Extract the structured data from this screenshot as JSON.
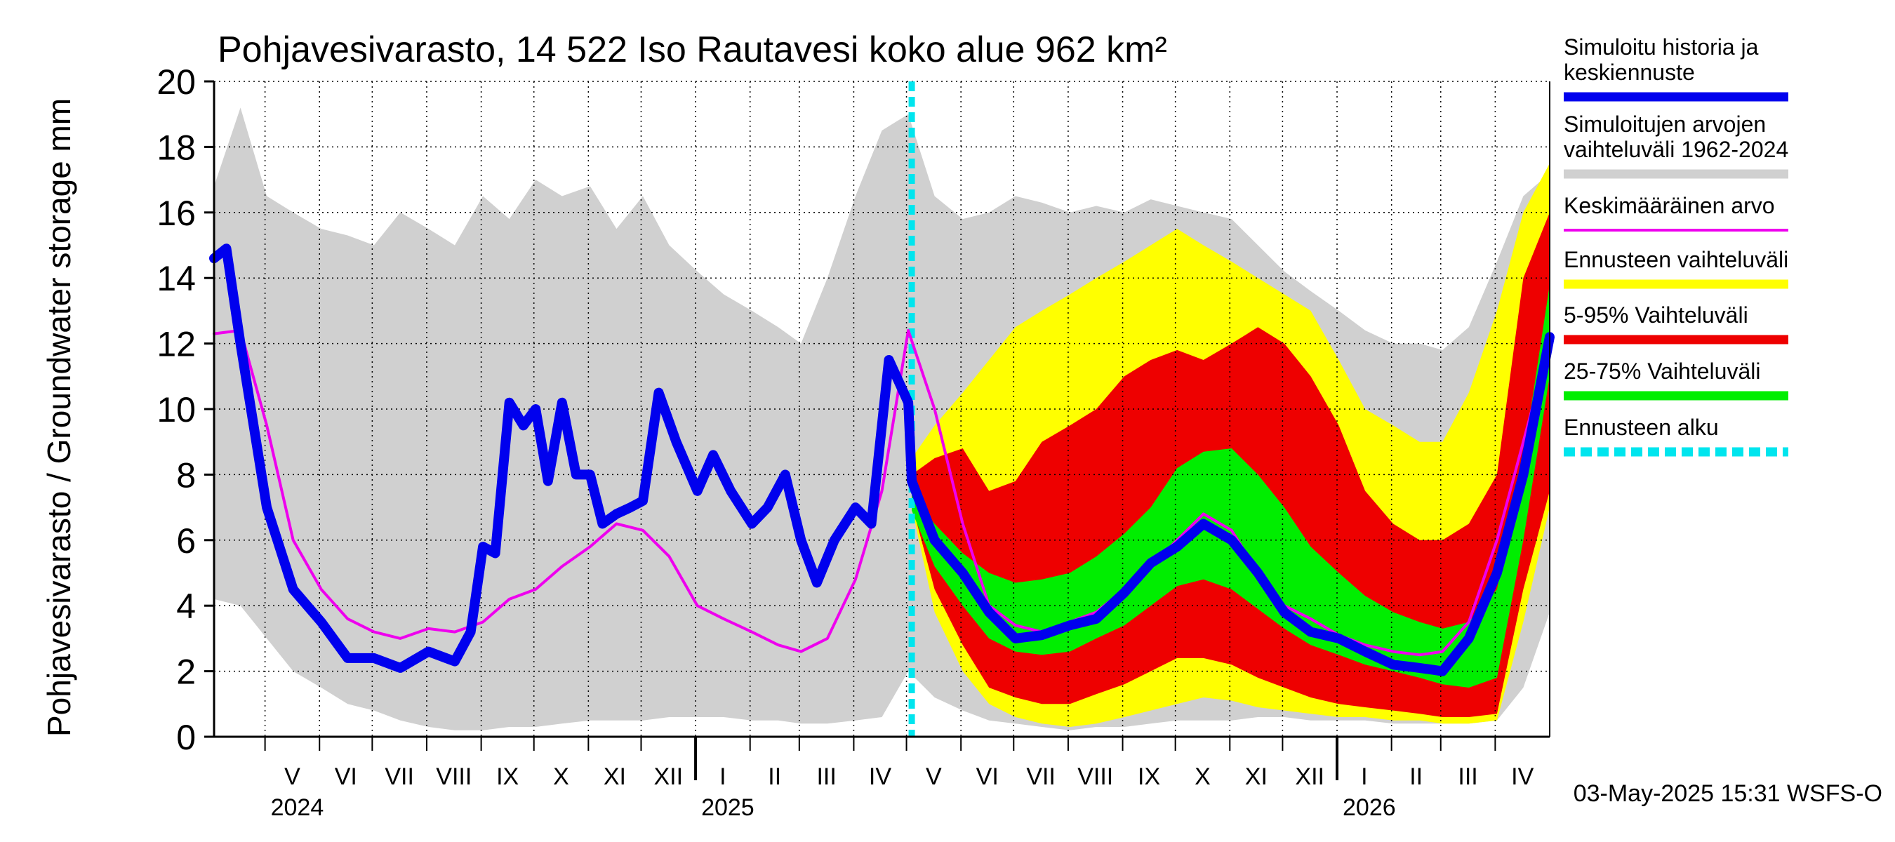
{
  "chart_data": {
    "type": "area",
    "title": "Pohjavesivarasto, 14 522 Iso Rautavesi koko alue 962 km²",
    "ylabel": "Pohjavesivarasto / Groundwater storage   mm",
    "ylim": [
      0,
      20
    ],
    "yticks": [
      "0",
      "2",
      "4",
      "6",
      "8",
      "10",
      "12",
      "14",
      "16",
      "18",
      "20"
    ],
    "xlim": [
      "2024-04-01",
      "2026-05-01"
    ],
    "forecast_start": "2025-05-03",
    "grid": true,
    "legend_position": "right",
    "month_labels": [
      {
        "label": "V",
        "start": "2024-04-30"
      },
      {
        "label": "VI",
        "start": "2024-05-31"
      },
      {
        "label": "VII",
        "start": "2024-06-30"
      },
      {
        "label": "VIII",
        "start": "2024-07-31"
      },
      {
        "label": "IX",
        "start": "2024-08-31"
      },
      {
        "label": "X",
        "start": "2024-09-30"
      },
      {
        "label": "XI",
        "start": "2024-10-31"
      },
      {
        "label": "XII",
        "start": "2024-11-30"
      },
      {
        "label": "I",
        "start": "2024-12-31"
      },
      {
        "label": "II",
        "start": "2025-01-31"
      },
      {
        "label": "III",
        "start": "2025-02-28"
      },
      {
        "label": "IV",
        "start": "2025-03-31"
      },
      {
        "label": "V",
        "start": "2025-04-30"
      },
      {
        "label": "VI",
        "start": "2025-05-31"
      },
      {
        "label": "VII",
        "start": "2025-06-30"
      },
      {
        "label": "VIII",
        "start": "2025-07-31"
      },
      {
        "label": "IX",
        "start": "2025-08-31"
      },
      {
        "label": "X",
        "start": "2025-09-30"
      },
      {
        "label": "XI",
        "start": "2025-10-31"
      },
      {
        "label": "XII",
        "start": "2025-11-30"
      },
      {
        "label": "I",
        "start": "2025-12-31"
      },
      {
        "label": "II",
        "start": "2026-01-31"
      },
      {
        "label": "III",
        "start": "2026-02-28"
      },
      {
        "label": "IV",
        "start": "2026-03-31"
      }
    ],
    "year_labels": [
      {
        "label": "2024",
        "start": "2024-04-30"
      },
      {
        "label": "2025",
        "start": "2024-12-31"
      },
      {
        "label": "2026",
        "start": "2025-12-31"
      }
    ],
    "legend": [
      {
        "label": "Simuloitu historia ja keskiennuste",
        "color": "#0000ee",
        "style": "thick"
      },
      {
        "label": "Simuloitujen arvojen vaihteluväli 1962-2024",
        "color": "#d0d0d0",
        "style": "thick"
      },
      {
        "label": "Keskimääräinen arvo",
        "color": "#ee00ee",
        "style": "thin"
      },
      {
        "label": "Ennusteen vaihteluväli",
        "color": "#ffff00",
        "style": "thick"
      },
      {
        "label": "5-95% Vaihteluväli",
        "color": "#ee0000",
        "style": "thick"
      },
      {
        "label": "25-75% Vaihteluväli",
        "color": "#00ee00",
        "style": "thick"
      },
      {
        "label": "Ennusteen alku",
        "color": "#00e5ee",
        "style": "dashed"
      }
    ],
    "series": [
      {
        "name": "Simuloitujen arvojen vaihteluväli 1962-2024",
        "kind": "band",
        "color": "#d0d0d0",
        "x": [
          "2024-04-01",
          "2024-04-16",
          "2024-05-01",
          "2024-05-16",
          "2024-06-01",
          "2024-06-16",
          "2024-07-01",
          "2024-07-16",
          "2024-08-01",
          "2024-08-16",
          "2024-09-01",
          "2024-09-16",
          "2024-10-01",
          "2024-10-16",
          "2024-11-01",
          "2024-11-16",
          "2024-12-01",
          "2024-12-16",
          "2025-01-01",
          "2025-01-16",
          "2025-02-01",
          "2025-02-16",
          "2025-03-01",
          "2025-03-16",
          "2025-04-01",
          "2025-04-16",
          "2025-05-01",
          "2025-05-16",
          "2025-06-01",
          "2025-06-16",
          "2025-07-01",
          "2025-07-16",
          "2025-08-01",
          "2025-08-16",
          "2025-09-01",
          "2025-09-16",
          "2025-10-01",
          "2025-10-16",
          "2025-11-01",
          "2025-11-16",
          "2025-12-01",
          "2025-12-16",
          "2026-01-01",
          "2026-01-16",
          "2026-02-01",
          "2026-02-16",
          "2026-03-01",
          "2026-03-16",
          "2026-04-01",
          "2026-04-16",
          "2026-05-01"
        ],
        "low": [
          4.2,
          4.0,
          3.0,
          2.0,
          1.5,
          1.0,
          0.8,
          0.5,
          0.3,
          0.2,
          0.2,
          0.3,
          0.3,
          0.4,
          0.5,
          0.5,
          0.5,
          0.6,
          0.6,
          0.6,
          0.5,
          0.5,
          0.4,
          0.4,
          0.5,
          0.6,
          2.0,
          1.2,
          0.8,
          0.5,
          0.4,
          0.3,
          0.2,
          0.3,
          0.3,
          0.4,
          0.5,
          0.5,
          0.5,
          0.6,
          0.6,
          0.5,
          0.5,
          0.5,
          0.4,
          0.4,
          0.4,
          0.4,
          0.5,
          1.5,
          3.8
        ],
        "high": [
          16.8,
          19.2,
          16.5,
          16.0,
          15.5,
          15.3,
          15.0,
          16.0,
          15.5,
          15.0,
          16.5,
          15.8,
          17.0,
          16.5,
          16.8,
          15.5,
          16.5,
          15.0,
          14.2,
          13.5,
          13.0,
          12.5,
          12.0,
          14.0,
          16.5,
          18.5,
          19.0,
          16.5,
          15.8,
          16.0,
          16.5,
          16.3,
          16.0,
          16.2,
          16.0,
          16.4,
          16.2,
          16.0,
          15.8,
          15.0,
          14.2,
          13.6,
          13.0,
          12.4,
          12.0,
          12.0,
          11.8,
          12.5,
          14.5,
          16.5,
          17.2
        ]
      },
      {
        "name": "Ennusteen vaihteluväli",
        "kind": "band",
        "color": "#ffff00",
        "x": [
          "2025-05-03",
          "2025-05-16",
          "2025-06-01",
          "2025-06-16",
          "2025-07-01",
          "2025-07-16",
          "2025-08-01",
          "2025-08-16",
          "2025-09-01",
          "2025-09-16",
          "2025-10-01",
          "2025-10-16",
          "2025-11-01",
          "2025-11-16",
          "2025-12-01",
          "2025-12-16",
          "2026-01-01",
          "2026-01-16",
          "2026-02-01",
          "2026-02-16",
          "2026-03-01",
          "2026-03-16",
          "2026-04-01",
          "2026-04-16",
          "2026-05-01"
        ],
        "low": [
          7.0,
          3.8,
          2.0,
          1.0,
          0.6,
          0.4,
          0.3,
          0.4,
          0.6,
          0.8,
          1.0,
          1.2,
          1.1,
          0.9,
          0.8,
          0.7,
          0.6,
          0.6,
          0.5,
          0.5,
          0.4,
          0.4,
          0.5,
          3.5,
          7.0
        ],
        "high": [
          8.5,
          9.5,
          10.5,
          11.5,
          12.5,
          13.0,
          13.5,
          14.0,
          14.5,
          15.0,
          15.5,
          15.0,
          14.5,
          14.0,
          13.5,
          13.0,
          11.5,
          10.0,
          9.5,
          9.0,
          9.0,
          10.5,
          13.0,
          16.0,
          17.5
        ]
      },
      {
        "name": "5-95% Vaihteluväli",
        "kind": "band",
        "color": "#ee0000",
        "x": [
          "2025-05-03",
          "2025-05-16",
          "2025-06-01",
          "2025-06-16",
          "2025-07-01",
          "2025-07-16",
          "2025-08-01",
          "2025-08-16",
          "2025-09-01",
          "2025-09-16",
          "2025-10-01",
          "2025-10-16",
          "2025-11-01",
          "2025-11-16",
          "2025-12-01",
          "2025-12-16",
          "2026-01-01",
          "2026-01-16",
          "2026-02-01",
          "2026-02-16",
          "2026-03-01",
          "2026-03-16",
          "2026-04-01",
          "2026-04-16",
          "2026-05-01"
        ],
        "low": [
          7.1,
          4.5,
          2.8,
          1.5,
          1.2,
          1.0,
          1.0,
          1.3,
          1.6,
          2.0,
          2.4,
          2.4,
          2.2,
          1.8,
          1.5,
          1.2,
          1.0,
          0.9,
          0.8,
          0.7,
          0.6,
          0.6,
          0.7,
          4.5,
          7.5
        ],
        "high": [
          8.0,
          8.5,
          8.8,
          7.5,
          7.8,
          9.0,
          9.5,
          10.0,
          11.0,
          11.5,
          11.8,
          11.5,
          12.0,
          12.5,
          12.0,
          11.0,
          9.5,
          7.5,
          6.5,
          6.0,
          6.0,
          6.5,
          8.0,
          14.0,
          16.0
        ]
      },
      {
        "name": "25-75% Vaihteluväli",
        "kind": "band",
        "color": "#00ee00",
        "x": [
          "2025-05-03",
          "2025-05-16",
          "2025-06-01",
          "2025-06-16",
          "2025-07-01",
          "2025-07-16",
          "2025-08-01",
          "2025-08-16",
          "2025-09-01",
          "2025-09-16",
          "2025-10-01",
          "2025-10-16",
          "2025-11-01",
          "2025-11-16",
          "2025-12-01",
          "2025-12-16",
          "2026-01-01",
          "2026-01-16",
          "2026-02-01",
          "2026-02-16",
          "2026-03-01",
          "2026-03-16",
          "2026-04-01",
          "2026-04-16",
          "2026-05-01"
        ],
        "low": [
          6.9,
          5.2,
          4.0,
          3.0,
          2.6,
          2.5,
          2.6,
          3.0,
          3.4,
          4.0,
          4.6,
          4.8,
          4.5,
          3.9,
          3.3,
          2.8,
          2.5,
          2.2,
          2.0,
          1.8,
          1.6,
          1.5,
          1.8,
          6.0,
          11.0
        ],
        "high": [
          7.4,
          6.5,
          5.6,
          5.0,
          4.7,
          4.8,
          5.0,
          5.5,
          6.2,
          7.0,
          8.2,
          8.7,
          8.8,
          8.0,
          7.0,
          5.8,
          5.0,
          4.3,
          3.8,
          3.5,
          3.3,
          3.5,
          4.5,
          8.5,
          13.8
        ]
      },
      {
        "name": "Keskimääräinen arvo",
        "kind": "line",
        "color": "#ee00ee",
        "width": 4,
        "x": [
          "2024-04-01",
          "2024-04-16",
          "2024-05-01",
          "2024-05-16",
          "2024-06-01",
          "2024-06-16",
          "2024-07-01",
          "2024-07-16",
          "2024-08-01",
          "2024-08-16",
          "2024-09-01",
          "2024-09-16",
          "2024-10-01",
          "2024-10-16",
          "2024-11-01",
          "2024-11-16",
          "2024-12-01",
          "2024-12-16",
          "2025-01-01",
          "2025-01-16",
          "2025-02-01",
          "2025-02-16",
          "2025-03-01",
          "2025-03-16",
          "2025-04-01",
          "2025-04-16",
          "2025-05-01",
          "2025-05-16",
          "2025-06-01",
          "2025-06-16",
          "2025-07-01",
          "2025-07-16",
          "2025-08-01",
          "2025-08-16",
          "2025-09-01",
          "2025-09-16",
          "2025-10-01",
          "2025-10-16",
          "2025-11-01",
          "2025-11-16",
          "2025-12-01",
          "2025-12-16",
          "2026-01-01",
          "2026-01-16",
          "2026-02-01",
          "2026-02-16",
          "2026-03-01",
          "2026-03-16",
          "2026-04-01",
          "2026-04-16",
          "2026-05-01"
        ],
        "values": [
          12.3,
          12.4,
          9.5,
          6.0,
          4.5,
          3.6,
          3.2,
          3.0,
          3.3,
          3.2,
          3.5,
          4.2,
          4.5,
          5.2,
          5.8,
          6.5,
          6.3,
          5.5,
          4.0,
          3.6,
          3.2,
          2.8,
          2.6,
          3.0,
          4.8,
          7.5,
          12.4,
          10.0,
          6.5,
          4.0,
          3.4,
          3.2,
          3.5,
          3.8,
          4.5,
          5.2,
          6.0,
          6.8,
          6.3,
          5.0,
          4.0,
          3.6,
          3.1,
          2.8,
          2.6,
          2.5,
          2.6,
          3.5,
          6.0,
          9.0,
          12.0
        ]
      },
      {
        "name": "Simuloitu historia ja keskiennuste",
        "kind": "line",
        "color": "#0000ee",
        "width": 14,
        "x": [
          "2024-04-01",
          "2024-04-08",
          "2024-04-16",
          "2024-05-01",
          "2024-05-16",
          "2024-06-01",
          "2024-06-16",
          "2024-07-01",
          "2024-07-16",
          "2024-08-01",
          "2024-08-16",
          "2024-08-25",
          "2024-09-01",
          "2024-09-08",
          "2024-09-16",
          "2024-09-24",
          "2024-10-01",
          "2024-10-08",
          "2024-10-16",
          "2024-10-24",
          "2024-11-01",
          "2024-11-08",
          "2024-11-16",
          "2024-11-24",
          "2024-12-01",
          "2024-12-10",
          "2024-12-20",
          "2025-01-01",
          "2025-01-10",
          "2025-01-20",
          "2025-02-01",
          "2025-02-10",
          "2025-02-20",
          "2025-03-01",
          "2025-03-10",
          "2025-03-20",
          "2025-04-01",
          "2025-04-10",
          "2025-04-20",
          "2025-05-01",
          "2025-05-03",
          "2025-05-16",
          "2025-06-01",
          "2025-06-16",
          "2025-07-01",
          "2025-07-16",
          "2025-08-01",
          "2025-08-16",
          "2025-09-01",
          "2025-09-16",
          "2025-10-01",
          "2025-10-16",
          "2025-11-01",
          "2025-11-16",
          "2025-12-01",
          "2025-12-16",
          "2026-01-01",
          "2026-01-16",
          "2026-02-01",
          "2026-02-16",
          "2026-03-01",
          "2026-03-16",
          "2026-04-01",
          "2026-04-16",
          "2026-05-01"
        ],
        "values": [
          14.6,
          14.9,
          12.0,
          7.0,
          4.5,
          3.5,
          2.4,
          2.4,
          2.1,
          2.6,
          2.3,
          3.2,
          5.8,
          5.6,
          10.2,
          9.5,
          10.0,
          7.8,
          10.2,
          8.0,
          8.0,
          6.5,
          6.8,
          7.0,
          7.2,
          10.5,
          9.0,
          7.5,
          8.6,
          7.5,
          6.5,
          7.0,
          8.0,
          6.0,
          4.7,
          6.0,
          7.0,
          6.5,
          11.5,
          10.2,
          7.8,
          6.0,
          5.0,
          3.8,
          3.0,
          3.1,
          3.4,
          3.6,
          4.4,
          5.3,
          5.8,
          6.5,
          6.0,
          5.0,
          3.8,
          3.2,
          3.0,
          2.6,
          2.2,
          2.1,
          2.0,
          3.0,
          5.0,
          8.0,
          12.2
        ]
      }
    ]
  },
  "footer": {
    "timestamp": "03-May-2025 15:31 WSFS-O"
  }
}
